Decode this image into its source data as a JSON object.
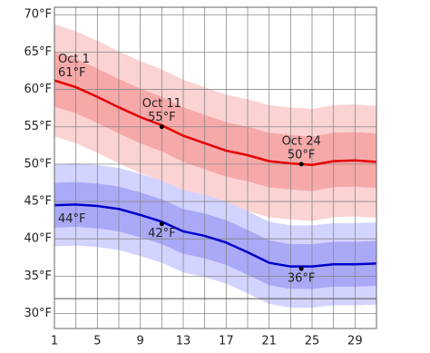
{
  "chart_data": {
    "type": "band-line",
    "x": [
      1,
      3,
      5,
      7,
      9,
      11,
      13,
      15,
      17,
      19,
      21,
      23,
      25,
      27,
      29,
      31
    ],
    "xlim": [
      1,
      31
    ],
    "xticks": [
      1,
      5,
      9,
      13,
      17,
      21,
      25,
      29
    ],
    "x_grid": [
      1,
      3,
      5,
      7,
      9,
      11,
      13,
      15,
      17,
      19,
      21,
      23,
      25,
      27,
      29,
      31
    ],
    "ylim": [
      28,
      71
    ],
    "yticks": [
      {
        "value": 30,
        "label": "30°F"
      },
      {
        "value": 35,
        "label": "35°F"
      },
      {
        "value": 40,
        "label": "40°F"
      },
      {
        "value": 45,
        "label": "45°F"
      },
      {
        "value": 50,
        "label": "50°F"
      },
      {
        "value": 55,
        "label": "55°F"
      },
      {
        "value": 60,
        "label": "60°F"
      },
      {
        "value": 65,
        "label": "65°F"
      },
      {
        "value": 70,
        "label": "70°F"
      }
    ],
    "reference_line": 32,
    "grid": true,
    "series": [
      {
        "color": "#e60000",
        "band_colors": [
          "#fbd3d3",
          "#f7a9a9"
        ],
        "values": [
          61.2,
          60.3,
          59.0,
          57.6,
          56.3,
          55.2,
          53.8,
          52.8,
          51.8,
          51.2,
          50.4,
          50.1,
          49.9,
          50.4,
          50.5,
          50.3
        ],
        "p10": [
          53.7,
          52.8,
          51.5,
          50.1,
          48.8,
          47.7,
          46.3,
          45.3,
          44.3,
          43.7,
          42.9,
          42.6,
          42.4,
          42.9,
          43.0,
          42.8
        ],
        "p25": [
          57.7,
          56.8,
          55.5,
          54.1,
          52.8,
          51.7,
          50.3,
          49.3,
          48.3,
          47.7,
          46.9,
          46.6,
          46.4,
          46.9,
          47.0,
          46.8
        ],
        "p75": [
          65.0,
          64.1,
          62.8,
          61.4,
          60.1,
          59.0,
          57.6,
          56.6,
          55.6,
          55.0,
          54.2,
          53.9,
          53.7,
          54.2,
          54.3,
          54.1
        ],
        "p90": [
          68.7,
          67.8,
          66.5,
          65.1,
          63.8,
          62.7,
          61.3,
          60.3,
          59.3,
          58.7,
          57.9,
          57.6,
          57.4,
          57.9,
          58.0,
          57.8
        ]
      },
      {
        "color": "#0000cc",
        "band_colors": [
          "#d3d3ff",
          "#a9a9f7"
        ],
        "values": [
          44.5,
          44.6,
          44.4,
          44.0,
          43.2,
          42.3,
          41.0,
          40.4,
          39.5,
          38.2,
          36.8,
          36.3,
          36.3,
          36.6,
          36.6,
          36.7
        ],
        "p10": [
          39.0,
          39.1,
          38.9,
          38.5,
          37.7,
          36.8,
          35.5,
          34.9,
          34.0,
          32.7,
          31.3,
          30.8,
          30.8,
          31.1,
          31.1,
          31.2
        ],
        "p25": [
          41.5,
          41.6,
          41.4,
          41.0,
          40.2,
          39.3,
          38.0,
          37.4,
          36.5,
          35.2,
          33.8,
          33.3,
          33.3,
          33.6,
          33.6,
          33.7
        ],
        "p75": [
          47.5,
          47.6,
          47.4,
          47.0,
          46.2,
          45.3,
          44.0,
          43.4,
          42.5,
          41.2,
          39.8,
          39.3,
          39.3,
          39.6,
          39.6,
          39.7
        ],
        "p90": [
          50.0,
          50.1,
          49.9,
          49.5,
          48.7,
          47.8,
          46.5,
          45.9,
          45.0,
          43.7,
          42.3,
          41.8,
          41.8,
          42.1,
          42.1,
          42.2
        ]
      }
    ],
    "annotations": [
      {
        "x": 1,
        "value": 61,
        "label": "Oct 1",
        "value_label": "61°F",
        "dot": false
      },
      {
        "x": 11,
        "value": 55,
        "label": "Oct 11",
        "value_label": "55°F",
        "dot": true
      },
      {
        "x": 24,
        "value": 50,
        "label": "Oct 24",
        "value_label": "50°F",
        "dot": true
      },
      {
        "x": 1,
        "value": 44,
        "value_label": "44°F",
        "dot": false
      },
      {
        "x": 11,
        "value": 42,
        "value_label": "42°F",
        "dot": true
      },
      {
        "x": 24,
        "value": 36,
        "value_label": "36°F",
        "dot": true
      }
    ]
  }
}
